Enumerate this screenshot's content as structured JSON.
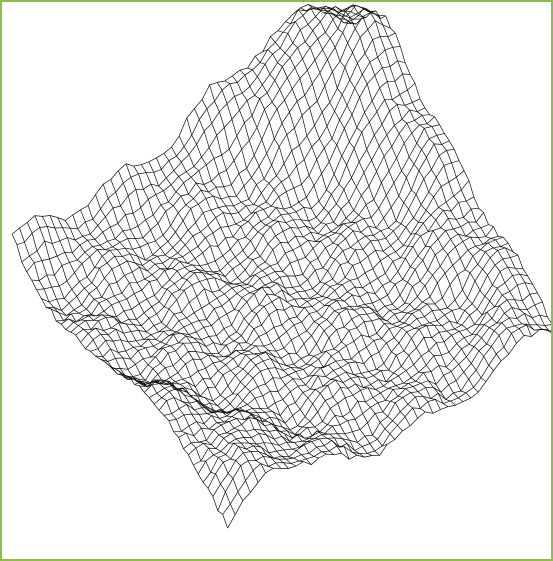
{
  "figure": {
    "icon": "terrain-wireframe-icon",
    "colors": {
      "frame_border": "#8cbd4a",
      "background": "#ffffff",
      "wire": "#111111"
    }
  }
}
